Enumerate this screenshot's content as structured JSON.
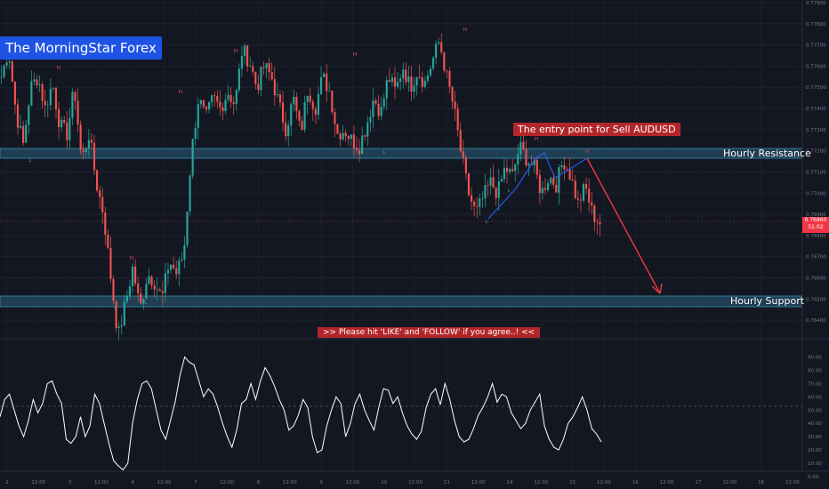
{
  "brand": {
    "label": "The MorningStar Forex"
  },
  "annotations": {
    "entry": "The entry point for Sell AUDUSD",
    "resistance": "Hourly Resistance",
    "support": "Hourly Support",
    "cta": ">>    Please hit 'LIKE' and 'FOLLOW' if you agree..!    <<"
  },
  "price_tag": {
    "price": "0.76860",
    "countdown": "51:02"
  },
  "colors": {
    "background": "#131722",
    "up": "#26a69a",
    "down": "#ef5350",
    "zone": "#2a5f7a",
    "arrow": "#f23645",
    "label_bg": "#b2262a",
    "brand_bg": "#1e53e5"
  },
  "chart_data": [
    {
      "type": "candlestick",
      "symbol": "AUDUSD",
      "timeframe": "1H",
      "ylim": [
        0.7635,
        0.779
      ],
      "y_ticks": [
        "0.77900",
        "0.77800",
        "0.77700",
        "0.77600",
        "0.77500",
        "0.77400",
        "0.77300",
        "0.77200",
        "0.77100",
        "0.77000",
        "0.76900",
        "0.76800",
        "0.76700",
        "0.76600",
        "0.76500",
        "0.76400"
      ],
      "x_ticks": [
        "2",
        "12:00",
        "3",
        "12:00",
        "4",
        "12:00",
        "7",
        "12:00",
        "8",
        "12:00",
        "9",
        "12:00",
        "10",
        "12:00",
        "11",
        "12:00",
        "14",
        "12:00",
        "15",
        "12:00",
        "16",
        "12:00",
        "17",
        "12:00",
        "18",
        "12:00"
      ],
      "close_path": [
        [
          0.7755,
          0
        ],
        [
          0.7768,
          4
        ],
        [
          0.7738,
          4
        ],
        [
          0.7723,
          4
        ],
        [
          0.775,
          4
        ],
        [
          0.7755,
          4
        ],
        [
          0.774,
          4
        ],
        [
          0.7752,
          4
        ],
        [
          0.7732,
          4
        ],
        [
          0.7728,
          4
        ],
        [
          0.775,
          4
        ],
        [
          0.7715,
          4
        ],
        [
          0.7728,
          4
        ],
        [
          0.7705,
          4
        ],
        [
          0.769,
          4
        ],
        [
          0.766,
          4
        ],
        [
          0.7632,
          4
        ],
        [
          0.7648,
          4
        ],
        [
          0.7665,
          4
        ],
        [
          0.7645,
          4
        ],
        [
          0.7662,
          4
        ],
        [
          0.7658,
          4
        ],
        [
          0.765,
          4
        ],
        [
          0.7668,
          4
        ],
        [
          0.7662,
          4
        ],
        [
          0.7672,
          4
        ],
        [
          0.7718,
          4
        ],
        [
          0.7745,
          4
        ],
        [
          0.7735,
          4
        ],
        [
          0.7745,
          4
        ],
        [
          0.774,
          4
        ],
        [
          0.7748,
          4
        ],
        [
          0.7742,
          4
        ],
        [
          0.7768,
          4
        ],
        [
          0.7762,
          4
        ],
        [
          0.775,
          4
        ],
        [
          0.776,
          4
        ],
        [
          0.7755,
          4
        ],
        [
          0.7742,
          4
        ],
        [
          0.773,
          4
        ],
        [
          0.7745,
          4
        ],
        [
          0.7728,
          4
        ],
        [
          0.775,
          4
        ],
        [
          0.774,
          4
        ],
        [
          0.7755,
          4
        ],
        [
          0.7748,
          4
        ],
        [
          0.7728,
          4
        ],
        [
          0.773,
          4
        ],
        [
          0.7725,
          4
        ],
        [
          0.7722,
          4
        ],
        [
          0.7732,
          4
        ],
        [
          0.7745,
          4
        ],
        [
          0.7738,
          4
        ],
        [
          0.7755,
          4
        ],
        [
          0.7748,
          4
        ],
        [
          0.776,
          4
        ],
        [
          0.775,
          4
        ],
        [
          0.7758,
          4
        ],
        [
          0.7752,
          4
        ],
        [
          0.7762,
          4
        ],
        [
          0.7772,
          4
        ],
        [
          0.7755,
          4
        ],
        [
          0.774,
          4
        ],
        [
          0.7718,
          4
        ],
        [
          0.77,
          4
        ],
        [
          0.769,
          4
        ],
        [
          0.7698,
          4
        ],
        [
          0.7705,
          4
        ],
        [
          0.77,
          4
        ],
        [
          0.7712,
          4
        ],
        [
          0.7708,
          4
        ],
        [
          0.7722,
          4
        ],
        [
          0.7716,
          4
        ],
        [
          0.7712,
          4
        ],
        [
          0.77,
          4
        ],
        [
          0.7708,
          4
        ],
        [
          0.7704,
          4
        ],
        [
          0.7716,
          4
        ],
        [
          0.7708,
          4
        ],
        [
          0.7695,
          4
        ],
        [
          0.7703,
          4
        ],
        [
          0.769,
          4
        ],
        [
          0.7686,
          4
        ]
      ],
      "hourly_resistance_zone": [
        0.7716,
        0.7721
      ],
      "hourly_support_zone": [
        0.765,
        0.7654
      ],
      "current_price": 0.7686
    },
    {
      "type": "line",
      "name": "RSI",
      "ylim": [
        0,
        95
      ],
      "y_ticks": [
        "90.00",
        "80.00",
        "70.00",
        "60.00",
        "50.00",
        "40.00",
        "30.00",
        "20.00",
        "10.00",
        "0.00"
      ],
      "midline": 50,
      "values": [
        45,
        58,
        62,
        50,
        38,
        30,
        42,
        58,
        48,
        55,
        70,
        72,
        62,
        55,
        28,
        25,
        30,
        45,
        30,
        38,
        62,
        55,
        40,
        25,
        12,
        8,
        5,
        10,
        40,
        58,
        70,
        72,
        66,
        50,
        35,
        28,
        42,
        56,
        76,
        90,
        86,
        84,
        72,
        60,
        66,
        62,
        52,
        40,
        30,
        22,
        35,
        55,
        58,
        70,
        58,
        72,
        82,
        76,
        68,
        58,
        50,
        35,
        38,
        46,
        58,
        52,
        30,
        18,
        20,
        38,
        50,
        60,
        55,
        30,
        40,
        55,
        62,
        50,
        42,
        35,
        52,
        66,
        65,
        55,
        60,
        48,
        38,
        32,
        28,
        34,
        52,
        62,
        66,
        54,
        70,
        58,
        42,
        30,
        26,
        28,
        36,
        46,
        52,
        60,
        70,
        56,
        62,
        60,
        48,
        42,
        36,
        40,
        50,
        56,
        62,
        38,
        28,
        22,
        20,
        28,
        40,
        45,
        52,
        60,
        50,
        36,
        32,
        26
      ]
    }
  ]
}
